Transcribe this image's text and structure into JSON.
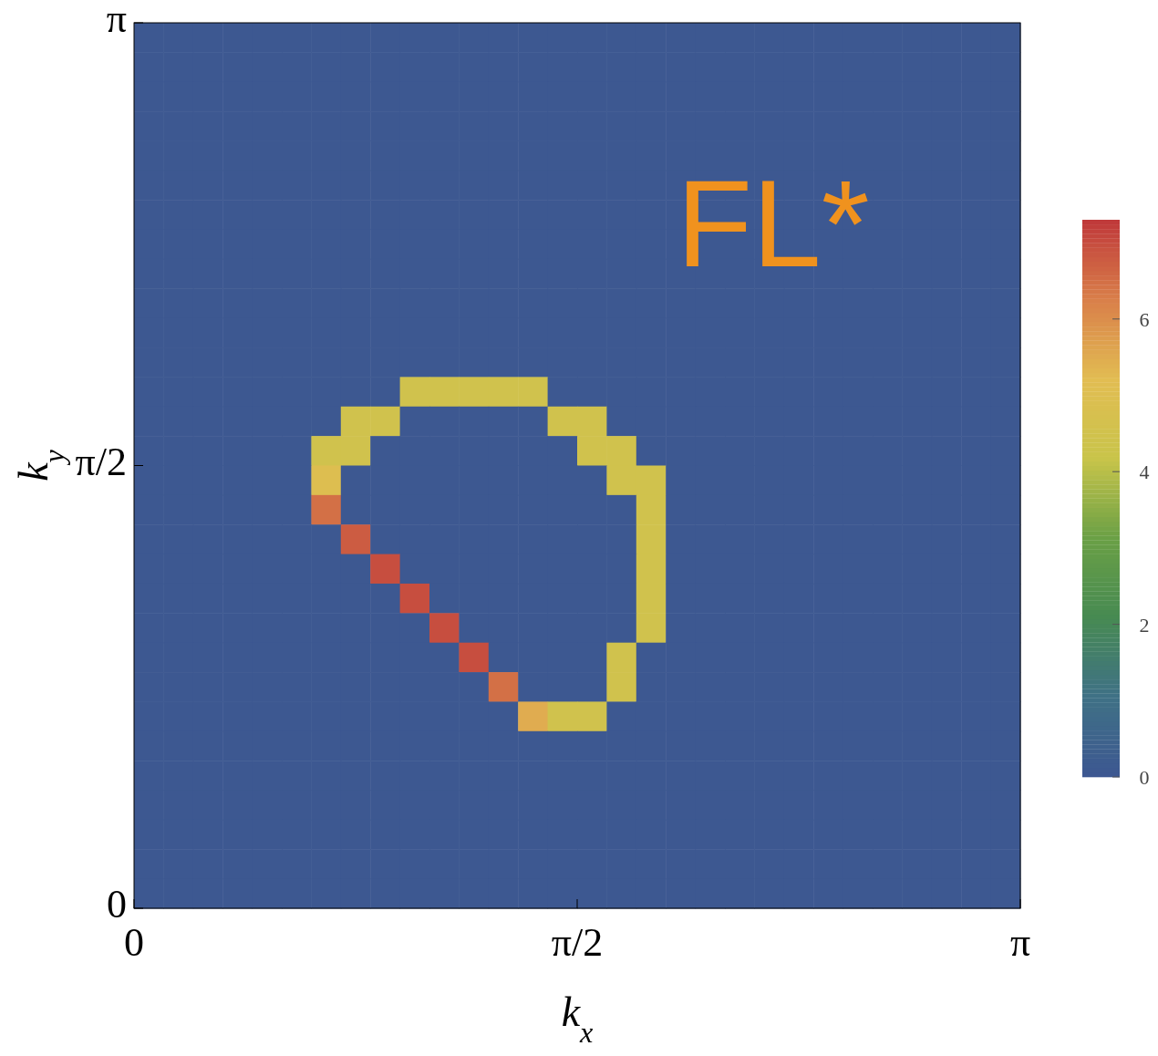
{
  "chart_data": {
    "type": "heatmap",
    "xlabel": "k$_{x}$",
    "ylabel": "k$_{y}$",
    "xlim": [
      0,
      3.1416
    ],
    "ylim": [
      0,
      3.1416
    ],
    "xticks": [
      {
        "value": 0,
        "label": "0"
      },
      {
        "value": 1.5708,
        "label": "π/2"
      },
      {
        "value": 3.1416,
        "label": "π"
      }
    ],
    "yticks": [
      {
        "value": 0,
        "label": "0"
      },
      {
        "value": 1.5708,
        "label": "π/2"
      },
      {
        "value": 3.1416,
        "label": "π"
      }
    ],
    "clim": [
      0,
      7.3
    ],
    "cticks": [
      0,
      2,
      4,
      6
    ],
    "annotations": [
      "FL*"
    ],
    "cells": [
      [
        0,
        0,
        0,
        0,
        0,
        0,
        0,
        0,
        0,
        0,
        0,
        0,
        0,
        0,
        0,
        0,
        0,
        0,
        0,
        0,
        0,
        0,
        0,
        0,
        0,
        0,
        0,
        0,
        0,
        0
      ],
      [
        0,
        0,
        0,
        0,
        0,
        0,
        0,
        0,
        0,
        0,
        0,
        0,
        0,
        0,
        0,
        0,
        0,
        0,
        0,
        0,
        0,
        0,
        0,
        0,
        0,
        0,
        0,
        0,
        0,
        0
      ],
      [
        0,
        0,
        0,
        0,
        0,
        0,
        0,
        0,
        0,
        0,
        0,
        0,
        0,
        0,
        0,
        0,
        0,
        0,
        0,
        0,
        0,
        0,
        0,
        0,
        0,
        0,
        0,
        0,
        0,
        0
      ],
      [
        0,
        0,
        0,
        0,
        0,
        0,
        0,
        0,
        0,
        0,
        0,
        0,
        0,
        0,
        0,
        0,
        0,
        0,
        0,
        0,
        0,
        0,
        0,
        0,
        0,
        0,
        0,
        0,
        0,
        0
      ],
      [
        0,
        0,
        0,
        0,
        0,
        0,
        0,
        0,
        0,
        0,
        0,
        0,
        0,
        0,
        0,
        0,
        0,
        0,
        0,
        0,
        0,
        0,
        0,
        0,
        0,
        0,
        0,
        0,
        0,
        0
      ],
      [
        0,
        0,
        0,
        0,
        0,
        0,
        0,
        0,
        0,
        0,
        0,
        0,
        0,
        0,
        0,
        0,
        0,
        0,
        0,
        0,
        0,
        0,
        0,
        0,
        0,
        0,
        0,
        0,
        0,
        0
      ],
      [
        0,
        0,
        0,
        0,
        0,
        0,
        0,
        0,
        0,
        0,
        0,
        0,
        0,
        0,
        0,
        0,
        0,
        0,
        0,
        0,
        0,
        0,
        0,
        0,
        0,
        0,
        0,
        0,
        0,
        0
      ],
      [
        0,
        0,
        0,
        0,
        0,
        0,
        0,
        0,
        0,
        0,
        0,
        0,
        0,
        0,
        0,
        0,
        0,
        0,
        0,
        0,
        0,
        0,
        0,
        0,
        0,
        0,
        0,
        0,
        0,
        0
      ],
      [
        0,
        0,
        0,
        0,
        0,
        0,
        0,
        0,
        0,
        0,
        0,
        0,
        0,
        0,
        0,
        0,
        0,
        0,
        0,
        0,
        0,
        0,
        0,
        0,
        0,
        0,
        0,
        0,
        0,
        0
      ],
      [
        0,
        0,
        0,
        0,
        0,
        0,
        0,
        0,
        0,
        0,
        0,
        0,
        0,
        0,
        0,
        0,
        0,
        0,
        0,
        0,
        0,
        0,
        0,
        0,
        0,
        0,
        0,
        0,
        0,
        0
      ],
      [
        0,
        0,
        0,
        0,
        0,
        0,
        0,
        0,
        0,
        0,
        0,
        0,
        0,
        0,
        0,
        0,
        0,
        0,
        0,
        0,
        0,
        0,
        0,
        0,
        0,
        0,
        0,
        0,
        0,
        0
      ],
      [
        0,
        0,
        0,
        0,
        0,
        0,
        0,
        0,
        0,
        0,
        0,
        0,
        0,
        0,
        0,
        0,
        0,
        0,
        0,
        0,
        0,
        0,
        0,
        0,
        0,
        0,
        0,
        0,
        0,
        0
      ],
      [
        0,
        0,
        0,
        0,
        0,
        0,
        0,
        0,
        0,
        4.5,
        4.5,
        4.5,
        4.5,
        4.5,
        0,
        0,
        0,
        0,
        0,
        0,
        0,
        0,
        0,
        0,
        0,
        0,
        0,
        0,
        0,
        0
      ],
      [
        0,
        0,
        0,
        0,
        0,
        0,
        0,
        4.5,
        4.5,
        0,
        0,
        0,
        0,
        0,
        4.5,
        4.5,
        0,
        0,
        0,
        0,
        0,
        0,
        0,
        0,
        0,
        0,
        0,
        0,
        0,
        0
      ],
      [
        0,
        0,
        0,
        0,
        0,
        0,
        4.5,
        4.5,
        0,
        0,
        0,
        0,
        0,
        0,
        0,
        4.5,
        4.5,
        0,
        0,
        0,
        0,
        0,
        0,
        0,
        0,
        0,
        0,
        0,
        0,
        0
      ],
      [
        0,
        0,
        0,
        0,
        0,
        0,
        5,
        0,
        0,
        0,
        0,
        0,
        0,
        0,
        0,
        0,
        4.5,
        4.5,
        0,
        0,
        0,
        0,
        0,
        0,
        0,
        0,
        0,
        0,
        0,
        0
      ],
      [
        0,
        0,
        0,
        0,
        0,
        0,
        6.5,
        0,
        0,
        0,
        0,
        0,
        0,
        0,
        0,
        0,
        0,
        4.5,
        0,
        0,
        0,
        0,
        0,
        0,
        0,
        0,
        0,
        0,
        0,
        0
      ],
      [
        0,
        0,
        0,
        0,
        0,
        0,
        0,
        6.8,
        0,
        0,
        0,
        0,
        0,
        0,
        0,
        0,
        0,
        4.5,
        0,
        0,
        0,
        0,
        0,
        0,
        0,
        0,
        0,
        0,
        0,
        0
      ],
      [
        0,
        0,
        0,
        0,
        0,
        0,
        0,
        0,
        7,
        0,
        0,
        0,
        0,
        0,
        0,
        0,
        0,
        4.5,
        0,
        0,
        0,
        0,
        0,
        0,
        0,
        0,
        0,
        0,
        0,
        0
      ],
      [
        0,
        0,
        0,
        0,
        0,
        0,
        0,
        0,
        0,
        7,
        0,
        0,
        0,
        0,
        0,
        0,
        0,
        4.5,
        0,
        0,
        0,
        0,
        0,
        0,
        0,
        0,
        0,
        0,
        0,
        0
      ],
      [
        0,
        0,
        0,
        0,
        0,
        0,
        0,
        0,
        0,
        0,
        7,
        0,
        0,
        0,
        0,
        0,
        0,
        4.5,
        0,
        0,
        0,
        0,
        0,
        0,
        0,
        0,
        0,
        0,
        0,
        0
      ],
      [
        0,
        0,
        0,
        0,
        0,
        0,
        0,
        0,
        0,
        0,
        0,
        7,
        0,
        0,
        0,
        0,
        4.5,
        0,
        0,
        0,
        0,
        0,
        0,
        0,
        0,
        0,
        0,
        0,
        0,
        0
      ],
      [
        0,
        0,
        0,
        0,
        0,
        0,
        0,
        0,
        0,
        0,
        0,
        0,
        6.5,
        0,
        0,
        0,
        4.5,
        0,
        0,
        0,
        0,
        0,
        0,
        0,
        0,
        0,
        0,
        0,
        0,
        0
      ],
      [
        0,
        0,
        0,
        0,
        0,
        0,
        0,
        0,
        0,
        0,
        0,
        0,
        0,
        5.5,
        4.5,
        4.5,
        0,
        0,
        0,
        0,
        0,
        0,
        0,
        0,
        0,
        0,
        0,
        0,
        0,
        0
      ],
      [
        0,
        0,
        0,
        0,
        0,
        0,
        0,
        0,
        0,
        0,
        0,
        0,
        0,
        0,
        0,
        0,
        0,
        0,
        0,
        0,
        0,
        0,
        0,
        0,
        0,
        0,
        0,
        0,
        0,
        0
      ],
      [
        0,
        0,
        0,
        0,
        0,
        0,
        0,
        0,
        0,
        0,
        0,
        0,
        0,
        0,
        0,
        0,
        0,
        0,
        0,
        0,
        0,
        0,
        0,
        0,
        0,
        0,
        0,
        0,
        0,
        0
      ],
      [
        0,
        0,
        0,
        0,
        0,
        0,
        0,
        0,
        0,
        0,
        0,
        0,
        0,
        0,
        0,
        0,
        0,
        0,
        0,
        0,
        0,
        0,
        0,
        0,
        0,
        0,
        0,
        0,
        0,
        0
      ],
      [
        0,
        0,
        0,
        0,
        0,
        0,
        0,
        0,
        0,
        0,
        0,
        0,
        0,
        0,
        0,
        0,
        0,
        0,
        0,
        0,
        0,
        0,
        0,
        0,
        0,
        0,
        0,
        0,
        0,
        0
      ],
      [
        0,
        0,
        0,
        0,
        0,
        0,
        0,
        0,
        0,
        0,
        0,
        0,
        0,
        0,
        0,
        0,
        0,
        0,
        0,
        0,
        0,
        0,
        0,
        0,
        0,
        0,
        0,
        0,
        0,
        0
      ],
      [
        0,
        0,
        0,
        0,
        0,
        0,
        0,
        0,
        0,
        0,
        0,
        0,
        0,
        0,
        0,
        0,
        0,
        0,
        0,
        0,
        0,
        0,
        0,
        0,
        0,
        0,
        0,
        0,
        0,
        0
      ]
    ]
  }
}
